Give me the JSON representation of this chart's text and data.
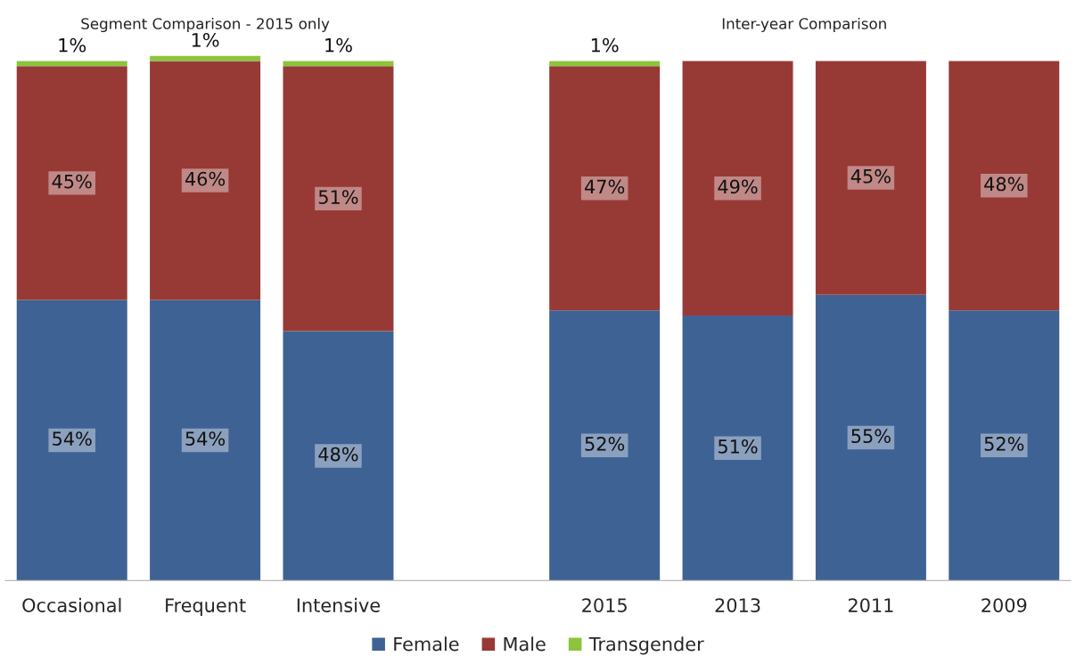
{
  "chart_data": {
    "type": "bar",
    "stacked": true,
    "categories": [
      "Occasional",
      "Frequent",
      "Intensive",
      null,
      "2015",
      "2013",
      "2011",
      "2009"
    ],
    "series": [
      {
        "name": "Female",
        "color": "#3e6294",
        "values": [
          54,
          54,
          48,
          null,
          52,
          51,
          55,
          52
        ],
        "value_labels": [
          "54%",
          "54%",
          "48%",
          null,
          "52%",
          "51%",
          "55%",
          "52%"
        ]
      },
      {
        "name": "Male",
        "color": "#973a36",
        "values": [
          45,
          46,
          51,
          null,
          47,
          49,
          45,
          48
        ],
        "value_labels": [
          "45%",
          "46%",
          "51%",
          null,
          "47%",
          "49%",
          "45%",
          "48%"
        ]
      },
      {
        "name": "Transgender",
        "color": "#8cc43c",
        "values": [
          1,
          1,
          1,
          null,
          1,
          null,
          null,
          null
        ],
        "value_labels": [
          "1%",
          "1%",
          "1%",
          null,
          "1%",
          null,
          null,
          null
        ]
      }
    ],
    "ylim": [
      0,
      101
    ],
    "tick_labels": "x",
    "grid": false,
    "legend": "bottom",
    "annotations": [
      "Segment Comparison - 2015 only",
      "Inter-year Comparison"
    ]
  }
}
